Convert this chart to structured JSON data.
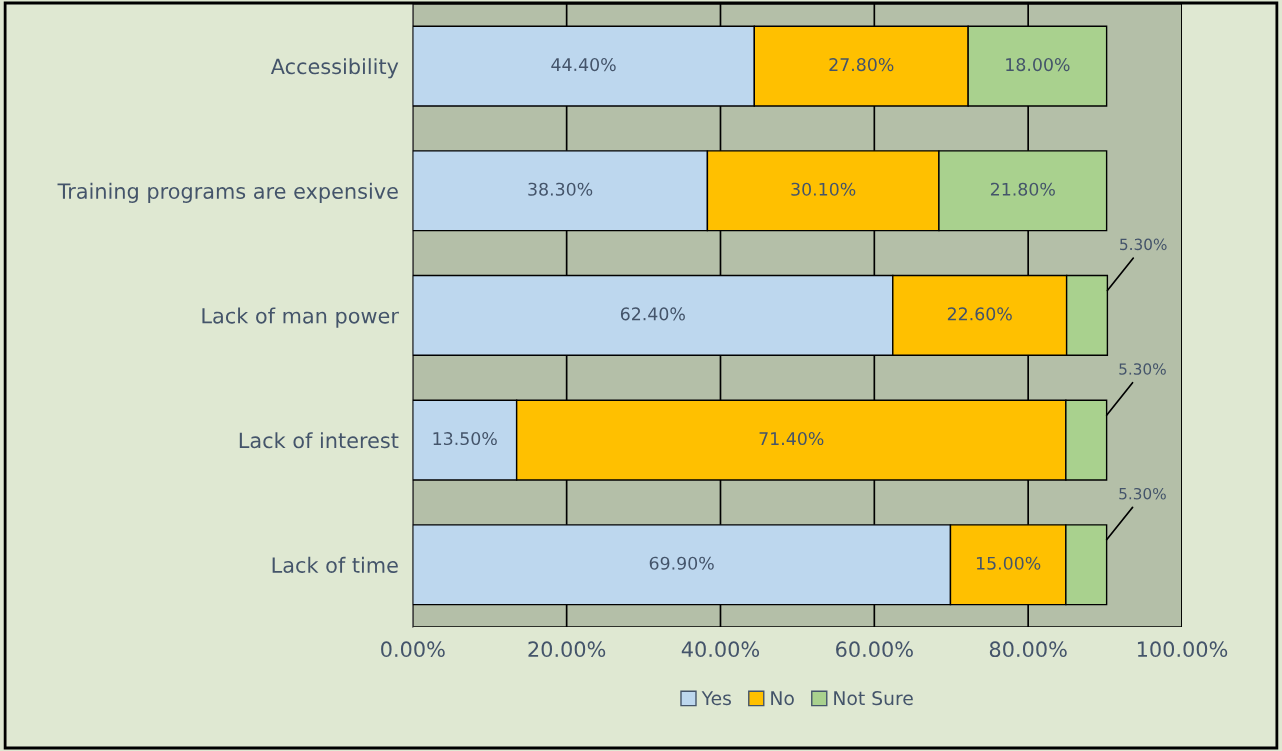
{
  "chart_data": {
    "type": "bar",
    "orientation": "horizontal",
    "stacked": true,
    "categories": [
      "Accessibility",
      "Training programs are expensive",
      "Lack of man power",
      "Lack of interest",
      "Lack of time"
    ],
    "series": [
      {
        "name": "Yes",
        "color": "#bdd7ee",
        "values": [
          44.4,
          38.3,
          62.4,
          13.5,
          69.9
        ],
        "value_labels": [
          "44.40%",
          "38.30%",
          "62.40%",
          "13.50%",
          "69.90%"
        ]
      },
      {
        "name": "No",
        "color": "#ffc000",
        "values": [
          27.8,
          30.1,
          22.6,
          71.4,
          15.0
        ],
        "value_labels": [
          "27.80%",
          "30.10%",
          "22.60%",
          "71.40%",
          "15.00%"
        ]
      },
      {
        "name": "Not Sure",
        "color": "#a9d18e",
        "values": [
          18.0,
          21.8,
          5.3,
          5.3,
          5.3
        ],
        "value_labels": [
          "18.00%",
          "21.80%",
          "5.30%",
          "5.30%",
          "5.30%"
        ]
      }
    ],
    "xlim": [
      0,
      100
    ],
    "xticks": [
      {
        "value": 0,
        "label": "0.00%"
      },
      {
        "value": 20,
        "label": "20.00%"
      },
      {
        "value": 40,
        "label": "40.00%"
      },
      {
        "value": 60,
        "label": "60.00%"
      },
      {
        "value": 80,
        "label": "80.00%"
      },
      {
        "value": 100,
        "label": "100.00%"
      }
    ],
    "grid": "x",
    "legend": "bottom"
  }
}
